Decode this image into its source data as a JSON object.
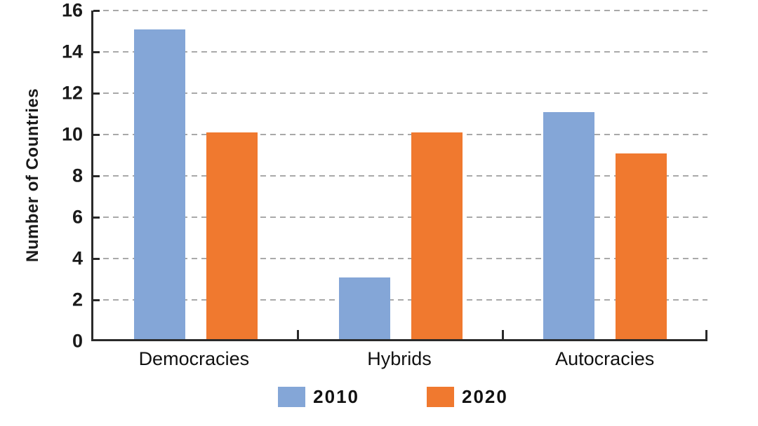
{
  "chart_data": {
    "type": "bar",
    "title": "",
    "xlabel": "",
    "ylabel": "Number of Countries",
    "categories": [
      "Democracies",
      "Hybrids",
      "Autocracies"
    ],
    "series": [
      {
        "name": "2010",
        "color": "#84A6D7",
        "values": [
          15,
          3,
          11
        ]
      },
      {
        "name": "2020",
        "color": "#F0792F",
        "values": [
          10,
          10,
          9
        ]
      }
    ],
    "ylim": [
      0,
      16
    ],
    "yticks": [
      0,
      2,
      4,
      6,
      8,
      10,
      12,
      14,
      16
    ],
    "grid": "horizontal-dashed",
    "legend_position": "bottom"
  },
  "colors": {
    "background": "#ffffff",
    "axis": "#2a2a2a",
    "gridline": "#a9a9a9",
    "text": "#1a1a1a",
    "series_2010": "#84A6D7",
    "series_2020": "#F0792F"
  }
}
